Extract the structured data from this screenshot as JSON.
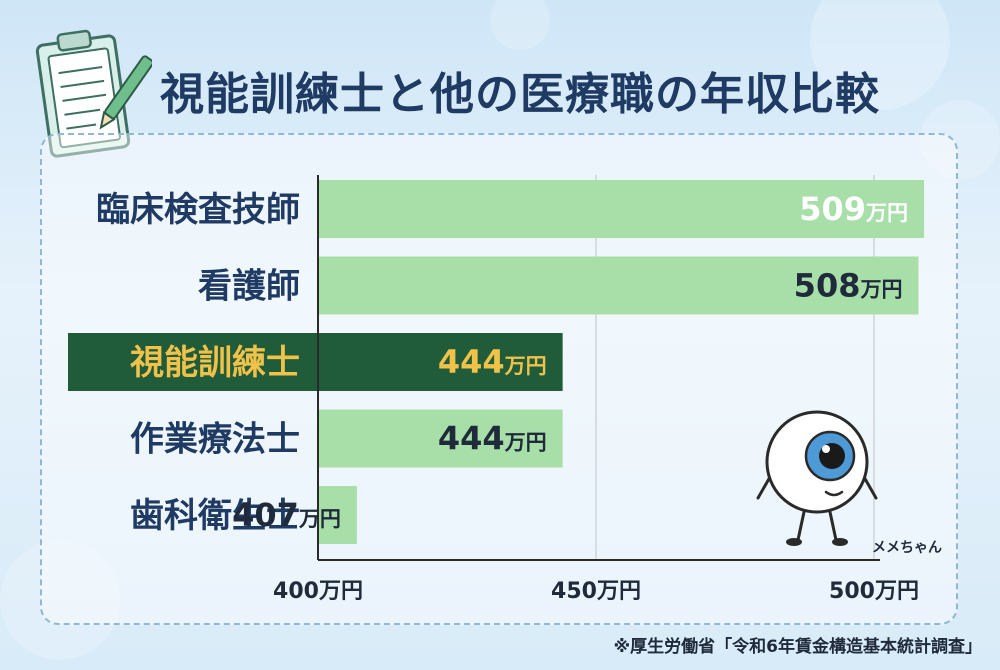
{
  "title": "視能訓練士と他の医療職の年収比較",
  "source_note": "※厚生労働省「令和6年賃金構造基本統計調査」",
  "mascot_name": "メメちゃん",
  "colors": {
    "bar": "#a8dfa9",
    "highlight_bar": "#215c3a",
    "highlight_text": "#f0c24a",
    "label_text": "#1f3a63",
    "value_text": "#1f2a3a"
  },
  "chart_data": {
    "type": "bar",
    "orientation": "horizontal",
    "title": "視能訓練士と他の医療職の年収比較",
    "categories": [
      "臨床検査技師",
      "看護師",
      "視能訓練士",
      "作業療法士",
      "歯科衛生士"
    ],
    "values": [
      509,
      508,
      444,
      444,
      407
    ],
    "value_labels": [
      "509",
      "508",
      "444",
      "444",
      "407"
    ],
    "value_unit": "万円",
    "highlight": "視能訓練士",
    "xlim": [
      400,
      500
    ],
    "x_ticks": [
      "400万円",
      "450万円",
      "500万円"
    ],
    "grid": true
  }
}
